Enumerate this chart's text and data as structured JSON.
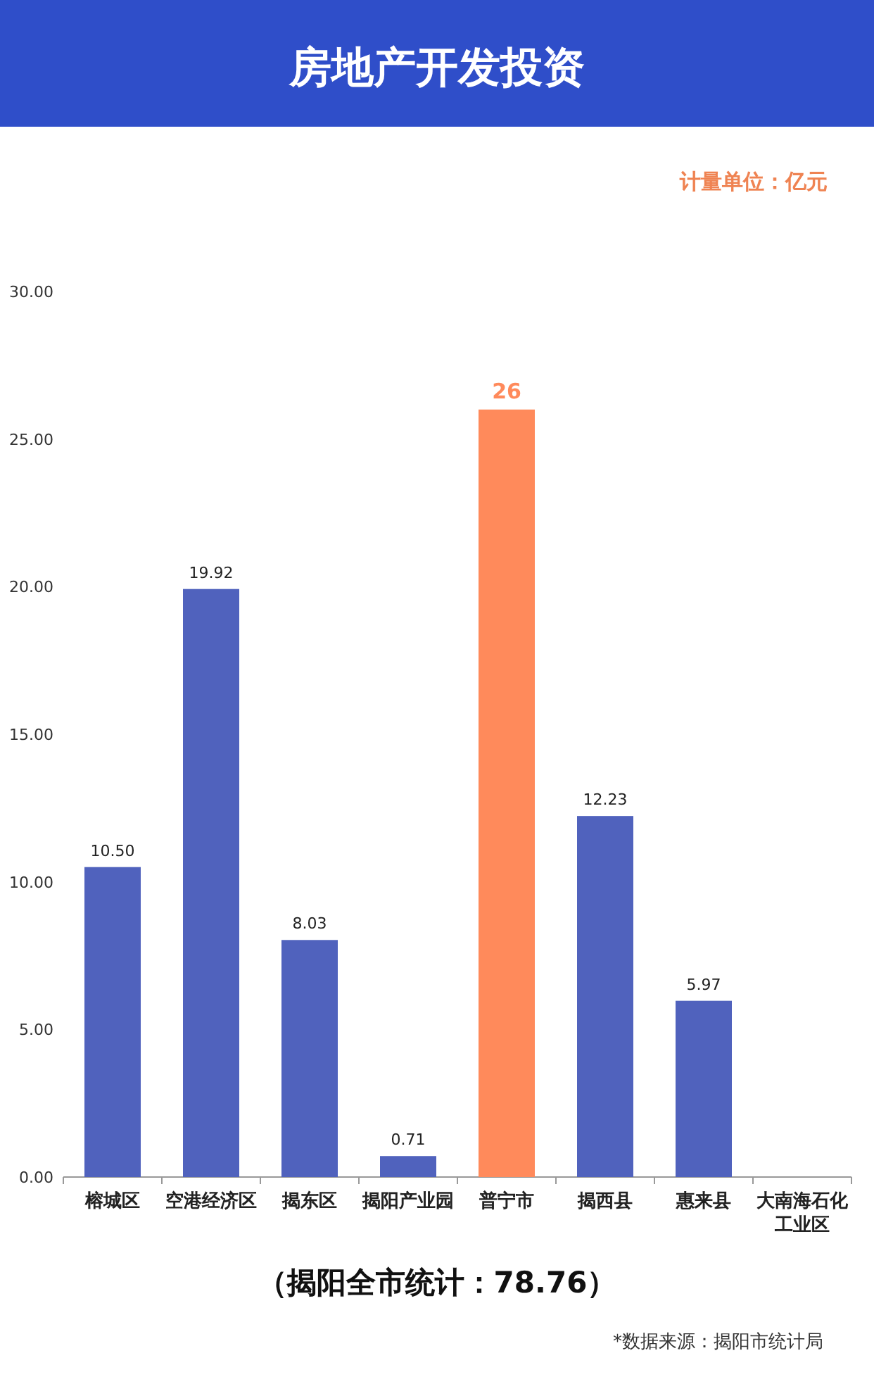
{
  "chart_data": {
    "type": "bar",
    "title": "房地产开发投资",
    "annotations": [
      "计量单位：亿元",
      "（揭阳全市统计：78.76）",
      "*数据来源：揭阳市统计局"
    ],
    "categories": [
      "榕城区",
      "空港经济区",
      "揭东区",
      "揭阳产业园",
      "普宁市",
      "揭西县",
      "惠来县",
      "大南海石化工业区"
    ],
    "values": [
      10.5,
      19.92,
      8.03,
      0.71,
      26,
      12.23,
      5.97,
      null
    ],
    "value_labels": [
      "10.50",
      "19.92",
      "8.03",
      "0.71",
      "26",
      "12.23",
      "5.97",
      null
    ],
    "colors": [
      "#5062bd",
      "#5062bd",
      "#5062bd",
      "#5062bd",
      "#ff8a5b",
      "#5062bd",
      "#5062bd",
      null
    ],
    "ylim": [
      0,
      30
    ],
    "yticks": [
      {
        "value": 0,
        "label": "0.00"
      },
      {
        "value": 5,
        "label": "5.00"
      },
      {
        "value": 10,
        "label": "10.00"
      },
      {
        "value": 15,
        "label": "15.00"
      },
      {
        "value": 20,
        "label": "20.00"
      },
      {
        "value": 25,
        "label": "25.00"
      },
      {
        "value": 30,
        "label": "30.00"
      }
    ],
    "grid": false
  }
}
